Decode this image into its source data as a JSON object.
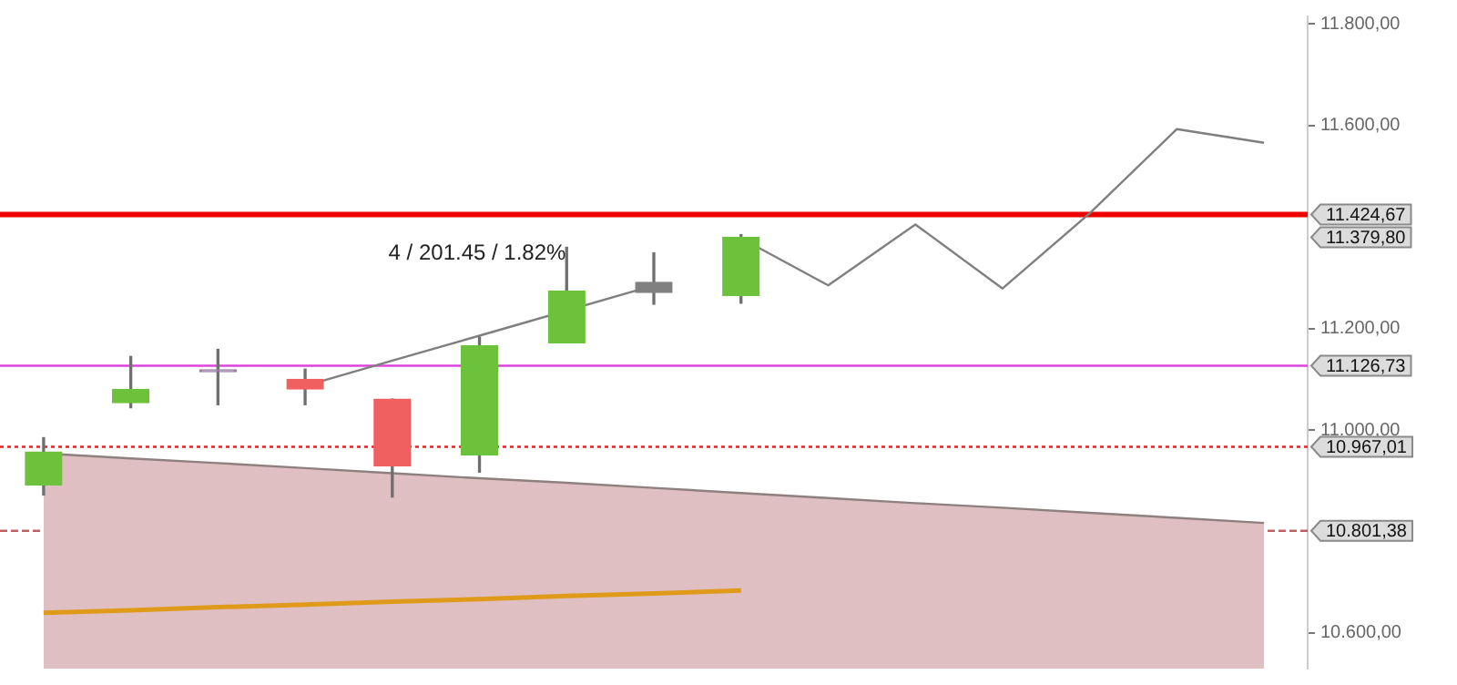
{
  "chart_data": {
    "type": "candlestick",
    "categories": [
      null,
      null,
      null,
      null,
      null,
      null,
      null,
      null,
      null,
      null,
      null,
      null,
      null,
      null,
      null
    ],
    "ohlc": [
      [
        10892,
        10985,
        10872,
        10957
      ],
      [
        11054,
        11145,
        11044,
        11080
      ],
      [
        11115,
        11159,
        11050,
        11119
      ],
      [
        11100,
        11120,
        11050,
        11081
      ],
      [
        11061,
        11061,
        10868,
        10929
      ],
      [
        10951,
        11183,
        10917,
        11166
      ],
      [
        11172,
        11360,
        11172,
        11274
      ],
      [
        11291,
        11349,
        11248,
        11271
      ],
      [
        11265,
        11385,
        11250,
        11379.8
      ],
      null,
      null,
      null,
      null,
      null,
      null
    ],
    "colors": [
      "#6cc23a",
      "#6cc23a",
      "#9a7fa6",
      "#f06060",
      "#f06060",
      "#6cc23a",
      "#6cc23a",
      "#808080",
      "#6cc23a",
      null,
      null,
      null,
      null,
      null,
      null
    ],
    "series": [
      {
        "type": "area",
        "color": "#dfbfc1",
        "values": [
          10954,
          10944,
          10935,
          10925,
          10915,
          10905,
          10896,
          10886,
          10876,
          10866,
          10856,
          10847,
          10837,
          10827,
          10817
        ]
      },
      {
        "type": "line",
        "color": "#e09a1a",
        "values": [
          10640,
          10645,
          10651,
          10656,
          10662,
          10667,
          10673,
          10678,
          10684,
          null,
          null,
          null,
          null,
          null,
          null
        ]
      },
      {
        "type": "line",
        "color": "#7f7f7f",
        "values": [
          null,
          null,
          null,
          11087,
          11137,
          11186,
          null,
          11285,
          null,
          null,
          null,
          null,
          null,
          null,
          null
        ]
      },
      {
        "type": "line",
        "color": "#7f7f7f",
        "values": [
          null,
          null,
          null,
          null,
          null,
          null,
          null,
          null,
          11378,
          11285,
          11405,
          11279,
          11427,
          11593,
          11566
        ]
      }
    ],
    "ref_lines": [
      {
        "axis": "y",
        "value": 11424.67,
        "label": "11.424,67",
        "color": "#ee0000",
        "line_style": "solid"
      },
      {
        "axis": "y",
        "value": 11126.73,
        "label": "11.126,73",
        "color": "#dd44dd",
        "line_style": "solid"
      },
      {
        "axis": "y",
        "value": 10967.01,
        "label": "10.967,01",
        "color": "#ee2222",
        "line_style": "dotted"
      },
      {
        "axis": "y",
        "value": 10801.38,
        "label": "10.801,38",
        "color": "#c06060",
        "line_style": "dashed"
      }
    ],
    "annotations": [
      "4 / 201.45 / 1.82%",
      "11.379,80"
    ],
    "ylim": [
      10530,
      11815
    ],
    "yticks": [
      {
        "value": 10600,
        "label": "10.600,00"
      },
      {
        "value": 11000,
        "label": "11.000,00"
      },
      {
        "value": 11200,
        "label": "11.200,00"
      },
      {
        "value": 11600,
        "label": "11.600,00"
      },
      {
        "value": 11800,
        "label": "11.800,00"
      }
    ],
    "tick_labels": "y"
  }
}
